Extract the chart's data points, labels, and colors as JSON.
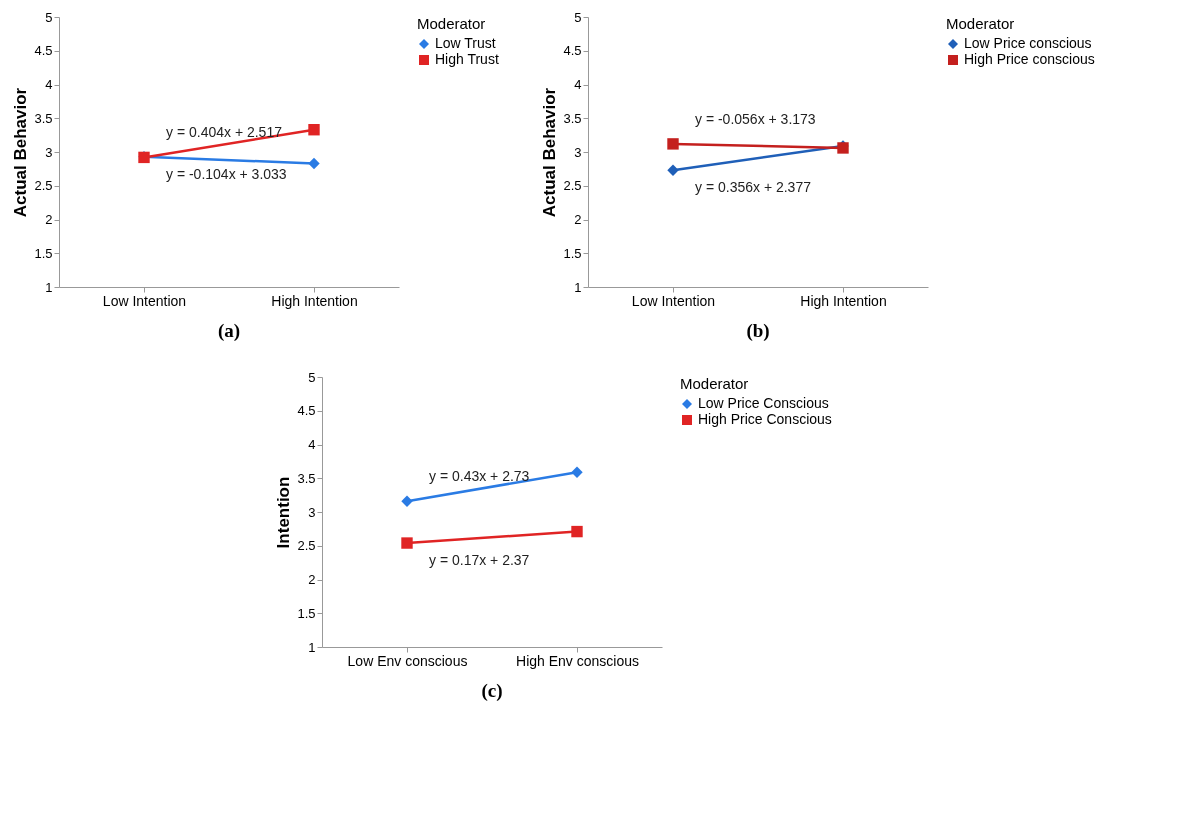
{
  "chart_data": [
    {
      "type": "line",
      "title": "(a)",
      "ylabel": "Actual Behavior",
      "legend_title": "Moderator",
      "legend": "right",
      "grid": false,
      "categories": [
        "Low Intention",
        "High Intention"
      ],
      "ylim": [
        1,
        5
      ],
      "yticks": [
        1,
        1.5,
        2,
        2.5,
        3,
        3.5,
        4,
        4.5,
        5
      ],
      "series": [
        {
          "name": "Low Trust",
          "color": "#2a7be4",
          "marker": "diamond",
          "values": [
            2.93,
            2.83
          ]
        },
        {
          "name": "High Trust",
          "color": "#e02424",
          "marker": "square",
          "values": [
            2.92,
            3.33
          ]
        }
      ],
      "annotations": [
        "y = -0.104x + 3.033",
        "y = 0.404x + 2.517"
      ]
    },
    {
      "type": "line",
      "title": "(b)",
      "ylabel": "Actual Behavior",
      "legend_title": "Moderator",
      "legend": "right",
      "grid": false,
      "categories": [
        "Low Intention",
        "High Intention"
      ],
      "ylim": [
        1,
        5
      ],
      "yticks": [
        1,
        1.5,
        2,
        2.5,
        3,
        3.5,
        4,
        4.5,
        5
      ],
      "series": [
        {
          "name": "Low Price conscious",
          "color": "#1f5fb8",
          "marker": "diamond",
          "values": [
            2.73,
            3.09
          ]
        },
        {
          "name": "High Price conscious",
          "color": "#c4201e",
          "marker": "square",
          "values": [
            3.12,
            3.06
          ]
        }
      ],
      "annotations": [
        "y = 0.356x + 2.377",
        "y = -0.056x + 3.173"
      ]
    },
    {
      "type": "line",
      "title": "(c)",
      "ylabel": "Intention",
      "legend_title": "Moderator",
      "legend": "right",
      "grid": false,
      "categories": [
        "Low Env conscious",
        "High Env conscious"
      ],
      "ylim": [
        1,
        5
      ],
      "yticks": [
        1,
        1.5,
        2,
        2.5,
        3,
        3.5,
        4,
        4.5,
        5
      ],
      "series": [
        {
          "name": "Low Price Conscious",
          "color": "#2a7be4",
          "marker": "diamond",
          "values": [
            3.16,
            3.59
          ]
        },
        {
          "name": "High Price Conscious",
          "color": "#e02424",
          "marker": "square",
          "values": [
            2.54,
            2.71
          ]
        }
      ],
      "annotations": [
        "y = 0.43x + 2.73",
        "y = 0.17x + 2.37"
      ]
    }
  ]
}
